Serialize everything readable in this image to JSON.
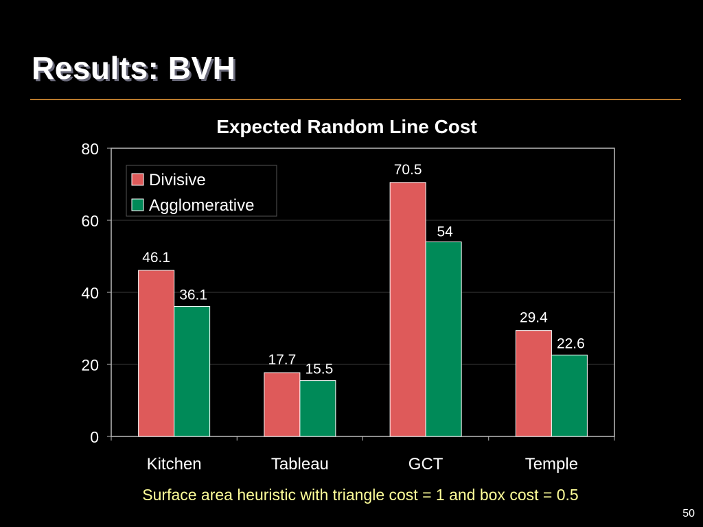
{
  "slide": {
    "title": "Results: BVH",
    "caption": "Surface area heuristic with triangle cost = 1 and box cost = 0.5",
    "page_number": "50"
  },
  "colors": {
    "background": "#000000",
    "rule": "#b8792c",
    "caption": "#ffff99",
    "divisive": "#de5a5a",
    "agglomerative": "#008a58"
  },
  "chart_data": {
    "type": "bar",
    "title": "Expected Random Line Cost",
    "xlabel": "",
    "ylabel": "",
    "categories": [
      "Kitchen",
      "Tableau",
      "GCT",
      "Temple"
    ],
    "series": [
      {
        "name": "Divisive",
        "color": "#de5a5a",
        "values": [
          46.1,
          17.7,
          70.5,
          29.4
        ],
        "labels": [
          "46.1",
          "17.7",
          "70.5",
          "29.4"
        ]
      },
      {
        "name": "Agglomerative",
        "color": "#008a58",
        "values": [
          36.1,
          15.5,
          54,
          22.6
        ],
        "labels": [
          "36.1",
          "15.5",
          "54",
          "22.6"
        ]
      }
    ],
    "ylim": [
      0,
      80
    ],
    "yticks": [
      "0",
      "20",
      "40",
      "60",
      "80"
    ],
    "grid": true,
    "legend": "top-left"
  }
}
